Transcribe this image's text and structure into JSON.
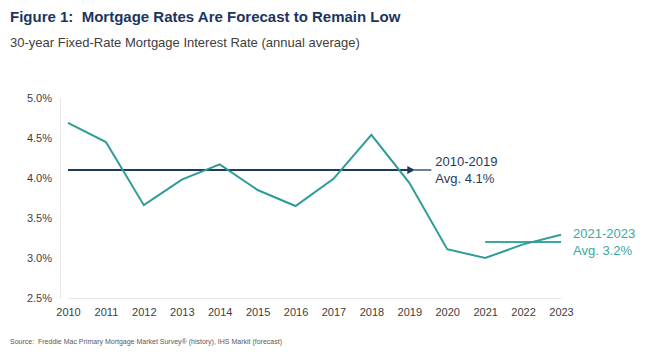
{
  "chart_data": {
    "type": "line",
    "title": "Figure 1:  Mortgage Rates Are Forecast to Remain Low",
    "subtitle": "30-year Fixed-Rate Mortgage Interest Rate (annual average)",
    "source": "Source:  Freddie Mac Primary Mortgage Market Survey® (history), IHS Markit (forecast)",
    "categories": [
      "2010",
      "2011",
      "2012",
      "2013",
      "2014",
      "2015",
      "2016",
      "2017",
      "2018",
      "2019",
      "2020",
      "2021",
      "2022",
      "2023"
    ],
    "values": [
      4.69,
      4.45,
      3.66,
      3.98,
      4.17,
      3.85,
      3.65,
      3.99,
      4.54,
      3.94,
      3.11,
      3.0,
      3.17,
      3.29
    ],
    "color": "#2e9c96",
    "ylim": [
      2.5,
      5.0
    ],
    "yticks": [
      {
        "value": 2.5,
        "label": "2.5%"
      },
      {
        "value": 3.0,
        "label": "3.0%"
      },
      {
        "value": 3.5,
        "label": "3.5%"
      },
      {
        "value": 4.0,
        "label": "4.0%"
      },
      {
        "value": 4.5,
        "label": "4.5%"
      },
      {
        "value": 5.0,
        "label": "5.0%"
      }
    ],
    "grid": false,
    "annotations": [
      {
        "text": [
          "2010-2019",
          "Avg. 4.1%"
        ],
        "value": 4.1,
        "from": "2010",
        "to": "2019",
        "color": "#1f3b5c"
      },
      {
        "text": [
          "2021-2023",
          "Avg. 3.2%"
        ],
        "value": 3.2,
        "from": "2021",
        "to": "2023",
        "color": "#3aa99f"
      }
    ]
  }
}
